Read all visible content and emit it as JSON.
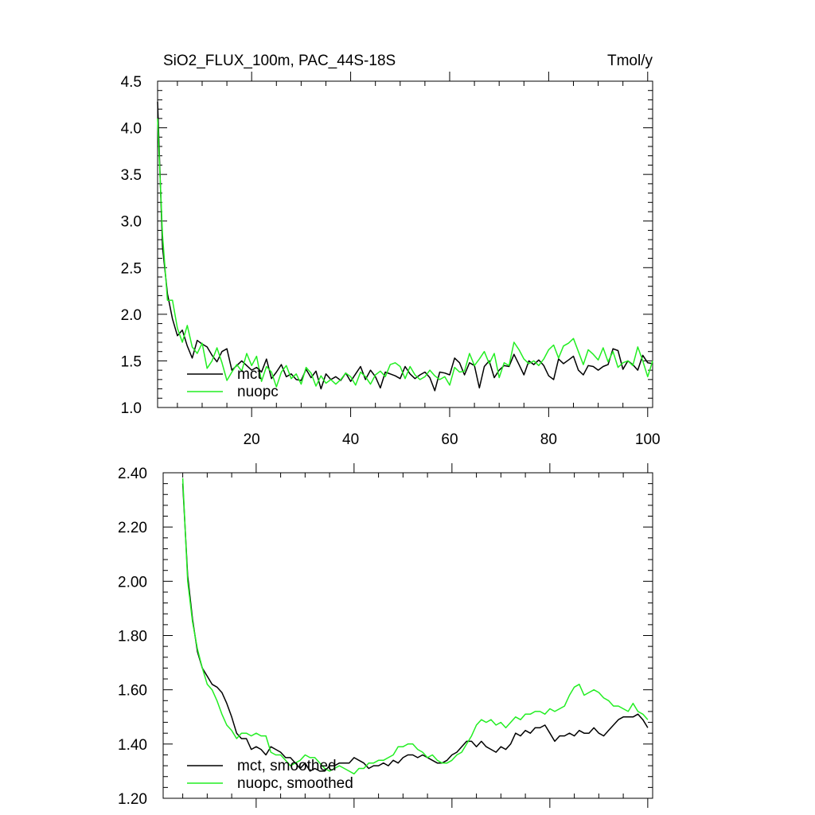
{
  "header": {
    "title": "SiO2_FLUX_100m, PAC_44S-18S",
    "units": "Tmol/y"
  },
  "chart_data": [
    {
      "type": "line",
      "xlim": [
        1,
        101
      ],
      "ylim": [
        1.0,
        4.5
      ],
      "xticks": [
        20,
        40,
        60,
        80,
        100
      ],
      "xtick_labels": [
        "20",
        "40",
        "60",
        "80",
        "100"
      ],
      "yticks": [
        1.0,
        1.5,
        2.0,
        2.5,
        3.0,
        3.5,
        4.0,
        4.5
      ],
      "ytick_labels": [
        "1.0",
        "1.5",
        "2.0",
        "2.5",
        "3.0",
        "3.5",
        "4.0",
        "4.5"
      ],
      "legend_position": "bottom-left",
      "series": [
        {
          "name": "mct",
          "color": "#000000",
          "x_start": 1,
          "values": [
            4.28,
            2.72,
            2.22,
            1.95,
            1.77,
            1.83,
            1.66,
            1.53,
            1.72,
            1.68,
            1.65,
            1.56,
            1.49,
            1.6,
            1.63,
            1.4,
            1.45,
            1.5,
            1.45,
            1.4,
            1.43,
            1.38,
            1.52,
            1.31,
            1.38,
            1.46,
            1.33,
            1.36,
            1.3,
            1.29,
            1.41,
            1.32,
            1.39,
            1.2,
            1.36,
            1.3,
            1.33,
            1.29,
            1.37,
            1.28,
            1.36,
            1.44,
            1.3,
            1.4,
            1.33,
            1.21,
            1.38,
            1.36,
            1.34,
            1.31,
            1.44,
            1.36,
            1.31,
            1.35,
            1.38,
            1.32,
            1.18,
            1.38,
            1.37,
            1.35,
            1.53,
            1.48,
            1.35,
            1.48,
            1.45,
            1.21,
            1.44,
            1.5,
            1.32,
            1.4,
            1.45,
            1.44,
            1.57,
            1.46,
            1.35,
            1.5,
            1.46,
            1.51,
            1.45,
            1.34,
            1.3,
            1.52,
            1.47,
            1.51,
            1.55,
            1.4,
            1.35,
            1.45,
            1.44,
            1.4,
            1.44,
            1.46,
            1.63,
            1.61,
            1.41,
            1.5,
            1.46,
            1.4,
            1.56,
            1.48,
            1.47
          ]
        },
        {
          "name": "nuopc",
          "color": "#22ee22",
          "x_start": 1,
          "values": [
            4.1,
            2.85,
            2.15,
            2.15,
            1.85,
            1.7,
            1.88,
            1.65,
            1.58,
            1.69,
            1.42,
            1.5,
            1.64,
            1.48,
            1.29,
            1.38,
            1.46,
            1.39,
            1.58,
            1.45,
            1.55,
            1.28,
            1.44,
            1.38,
            1.22,
            1.38,
            1.45,
            1.31,
            1.36,
            1.25,
            1.43,
            1.37,
            1.23,
            1.34,
            1.26,
            1.3,
            1.25,
            1.3,
            1.37,
            1.33,
            1.24,
            1.38,
            1.33,
            1.25,
            1.35,
            1.39,
            1.33,
            1.46,
            1.48,
            1.44,
            1.31,
            1.44,
            1.35,
            1.3,
            1.33,
            1.4,
            1.34,
            1.3,
            1.33,
            1.24,
            1.43,
            1.38,
            1.39,
            1.58,
            1.45,
            1.52,
            1.6,
            1.47,
            1.58,
            1.32,
            1.48,
            1.45,
            1.7,
            1.62,
            1.52,
            1.47,
            1.5,
            1.45,
            1.52,
            1.62,
            1.67,
            1.53,
            1.66,
            1.69,
            1.74,
            1.6,
            1.46,
            1.62,
            1.57,
            1.51,
            1.64,
            1.49,
            1.6,
            1.43,
            1.48,
            1.5,
            1.45,
            1.65,
            1.5,
            1.33,
            1.5
          ]
        }
      ]
    },
    {
      "type": "line",
      "xlim": [
        1,
        101
      ],
      "ylim": [
        1.2,
        2.4
      ],
      "xticks": [
        20,
        40,
        60,
        80,
        100
      ],
      "yticks": [
        1.2,
        1.4,
        1.6,
        1.8,
        2.0,
        2.2,
        2.4
      ],
      "ytick_labels": [
        "1.20",
        "1.40",
        "1.60",
        "1.80",
        "2.00",
        "2.20",
        "2.40"
      ],
      "legend_position": "bottom-left",
      "series": [
        {
          "name": "mct, smoothed",
          "color": "#000000",
          "x_start": 5,
          "values": [
            2.36,
            2.02,
            1.86,
            1.74,
            1.68,
            1.65,
            1.62,
            1.61,
            1.59,
            1.55,
            1.5,
            1.44,
            1.42,
            1.42,
            1.38,
            1.39,
            1.38,
            1.36,
            1.39,
            1.38,
            1.37,
            1.35,
            1.35,
            1.33,
            1.31,
            1.33,
            1.3,
            1.31,
            1.3,
            1.3,
            1.32,
            1.32,
            1.33,
            1.33,
            1.33,
            1.35,
            1.34,
            1.33,
            1.31,
            1.32,
            1.32,
            1.33,
            1.32,
            1.34,
            1.33,
            1.35,
            1.36,
            1.36,
            1.35,
            1.36,
            1.35,
            1.34,
            1.33,
            1.33,
            1.34,
            1.36,
            1.37,
            1.39,
            1.41,
            1.41,
            1.39,
            1.41,
            1.39,
            1.38,
            1.37,
            1.39,
            1.38,
            1.4,
            1.44,
            1.43,
            1.45,
            1.44,
            1.46,
            1.46,
            1.47,
            1.44,
            1.41,
            1.43,
            1.43,
            1.44,
            1.43,
            1.45,
            1.44,
            1.44,
            1.46,
            1.44,
            1.43,
            1.45,
            1.47,
            1.49,
            1.5,
            1.5,
            1.5,
            1.51,
            1.49,
            1.46
          ]
        },
        {
          "name": "nuopc, smoothed",
          "color": "#22ee22",
          "x_start": 5,
          "values": [
            2.38,
            2.0,
            1.85,
            1.75,
            1.68,
            1.62,
            1.6,
            1.56,
            1.51,
            1.47,
            1.45,
            1.42,
            1.44,
            1.44,
            1.43,
            1.44,
            1.43,
            1.43,
            1.37,
            1.36,
            1.36,
            1.34,
            1.32,
            1.33,
            1.34,
            1.36,
            1.35,
            1.35,
            1.33,
            1.31,
            1.3,
            1.31,
            1.32,
            1.31,
            1.3,
            1.29,
            1.31,
            1.31,
            1.33,
            1.33,
            1.34,
            1.34,
            1.35,
            1.36,
            1.39,
            1.39,
            1.4,
            1.4,
            1.38,
            1.37,
            1.35,
            1.36,
            1.34,
            1.33,
            1.33,
            1.34,
            1.36,
            1.37,
            1.4,
            1.43,
            1.47,
            1.49,
            1.48,
            1.49,
            1.47,
            1.48,
            1.46,
            1.48,
            1.5,
            1.49,
            1.51,
            1.51,
            1.52,
            1.52,
            1.51,
            1.53,
            1.52,
            1.53,
            1.54,
            1.58,
            1.61,
            1.62,
            1.58,
            1.59,
            1.6,
            1.59,
            1.57,
            1.56,
            1.54,
            1.54,
            1.53,
            1.52,
            1.55,
            1.52,
            1.51,
            1.49
          ]
        }
      ]
    }
  ]
}
